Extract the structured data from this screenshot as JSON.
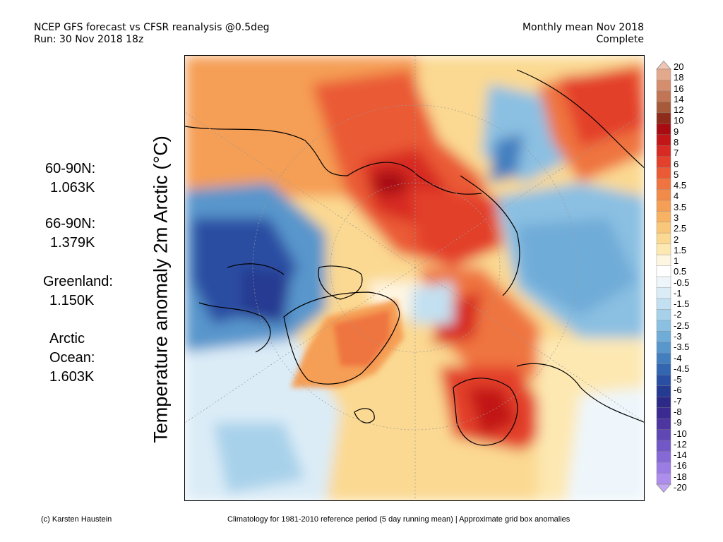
{
  "header": {
    "line1": "NCEP GFS forecast vs CFSR reanalysis @0.5deg",
    "line2": "Run: 30 Nov 2018 18z",
    "right1": "Monthly mean Nov 2018",
    "right2": "Complete"
  },
  "stats": [
    {
      "label": "60-90N:",
      "value": "1.063K"
    },
    {
      "label": "66-90N:",
      "value": "1.379K"
    },
    {
      "label": "Greenland:",
      "value": "1.150K"
    },
    {
      "label": "Arctic",
      "label2": "Ocean:",
      "value": "1.603K"
    }
  ],
  "colorbar": {
    "title": "Temperature anomaly 2m Arctic (°C)",
    "labels": [
      "20",
      "18",
      "16",
      "14",
      "12",
      "10",
      "9",
      "8",
      "7",
      "6",
      "5",
      "4.5",
      "4",
      "3.5",
      "3",
      "2.5",
      "2",
      "1.5",
      "1",
      "0.5",
      "-0.5",
      "-1",
      "-1.5",
      "-2",
      "-2.5",
      "-3",
      "-3.5",
      "-4",
      "-4.5",
      "-5",
      "-6",
      "-7",
      "-8",
      "-9",
      "-10",
      "-12",
      "-14",
      "-16",
      "-18",
      "-20"
    ],
    "colors": [
      "#f2c6b4",
      "#e3a98d",
      "#d48e6e",
      "#c17554",
      "#a65a3a",
      "#8e2b1a",
      "#a80c12",
      "#c21618",
      "#d72a22",
      "#e3412b",
      "#ea5a35",
      "#ef7440",
      "#f28a4a",
      "#f59e55",
      "#f7b264",
      "#f9c77a",
      "#fbd992",
      "#fde8b2",
      "#fff6e2",
      "#ffffff",
      "#eef6fb",
      "#dbecf7",
      "#c2e0f1",
      "#a7d1ea",
      "#8bc0e2",
      "#70acd8",
      "#5896cc",
      "#437fbf",
      "#3366b0",
      "#2a4ea2",
      "#253b91",
      "#2c2a86",
      "#3b2a8f",
      "#4d36a0",
      "#5f48b4",
      "#7258c6",
      "#8769d6",
      "#9a7ce3",
      "#ad8eed",
      "#c2a6f4"
    ]
  },
  "footer": {
    "left": "(c) Karsten Haustein",
    "right": "Climatology for 1981-2010 reference period (5 day running mean) | Approximate grid box anomalies"
  }
}
